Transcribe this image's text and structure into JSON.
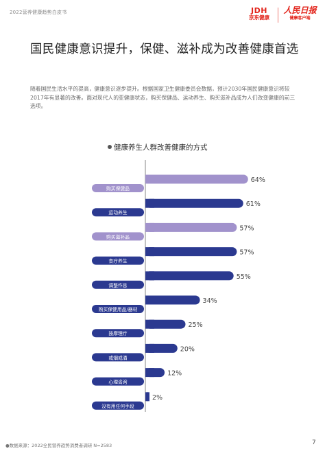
{
  "header": {
    "report_title": "2022营养健康趋势白皮书",
    "logo_jd_mark": "JDH",
    "logo_jd_name": "京东健康",
    "logo_rmrb_mark": "人民日报",
    "logo_rmrb_sub": "健康客户端"
  },
  "page_title": "国民健康意识提升，保健、滋补成为改善健康首选",
  "intro": "随着国民生活水平的提高，健康意识逐步提升。根据国家卫生健康委员会数据，预计2030年国民健康意识将较2017年有显著的改善。面对现代人的亚健康状态，购买保健品、运动养生、购买滋补品成为人们改变健康的前三选项。",
  "chart_title": "健康养生人群改善健康的方式",
  "colors": {
    "purple": "#a192cc",
    "navy": "#2b3990",
    "axis": "#999999",
    "label_text": "#ffffff",
    "value_text": "#444444"
  },
  "chart_data": {
    "type": "bar",
    "orientation": "horizontal",
    "title": "健康养生人群改善健康的方式",
    "categories": [
      "购买保健品",
      "运动养生",
      "购买滋补品",
      "食疗养生",
      "调整作息",
      "购买保健用品/器材",
      "按摩理疗",
      "戒烟戒酒",
      "心理咨询",
      "没有用任何手段"
    ],
    "values": [
      64,
      61,
      57,
      57,
      55,
      34,
      25,
      20,
      12,
      2
    ],
    "value_labels": [
      "64%",
      "61%",
      "57%",
      "57%",
      "55%",
      "34%",
      "25%",
      "20%",
      "12%",
      "2%"
    ],
    "bar_colors": [
      "purple",
      "navy",
      "purple",
      "navy",
      "navy",
      "navy",
      "navy",
      "navy",
      "navy",
      "navy"
    ],
    "xlim": [
      0,
      100
    ],
    "unit": "%"
  },
  "footer": {
    "source": "●数据来源：2022全民营养趋势消费者调研 N=2583",
    "page_number": "7"
  }
}
